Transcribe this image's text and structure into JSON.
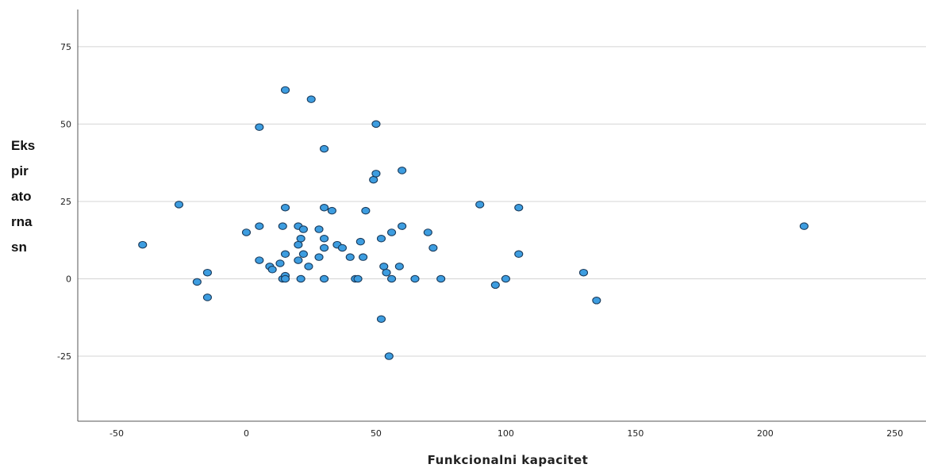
{
  "chart_data": {
    "type": "scatter",
    "title": "",
    "xlabel": "Funkcionalni kapacitet",
    "ylabel_lines": [
      "Eks",
      "pir",
      "ato",
      "rna",
      "sn"
    ],
    "xlim": [
      -65,
      262
    ],
    "ylim": [
      -46,
      87
    ],
    "xticks": [
      -50,
      0,
      50,
      100,
      150,
      200,
      250
    ],
    "yticks": [
      -25,
      0,
      25,
      50,
      75
    ],
    "grid": "horizontal",
    "legend": "none",
    "colors": {
      "point_fill": "#3d9de0",
      "point_stroke": "#1a3a5a",
      "grid": "#d4d4d4",
      "axis": "#555555"
    },
    "points": [
      [
        -40,
        11
      ],
      [
        -26,
        24
      ],
      [
        -19,
        -1
      ],
      [
        -15,
        2
      ],
      [
        -15,
        -6
      ],
      [
        0,
        15
      ],
      [
        5,
        49
      ],
      [
        5,
        17
      ],
      [
        5,
        6
      ],
      [
        9,
        4
      ],
      [
        10,
        3
      ],
      [
        13,
        5
      ],
      [
        14,
        17
      ],
      [
        14,
        0
      ],
      [
        15,
        61
      ],
      [
        15,
        23
      ],
      [
        15,
        8
      ],
      [
        15,
        1
      ],
      [
        15,
        0
      ],
      [
        20,
        17
      ],
      [
        20,
        11
      ],
      [
        20,
        6
      ],
      [
        21,
        13
      ],
      [
        21,
        0
      ],
      [
        22,
        16
      ],
      [
        22,
        8
      ],
      [
        24,
        4
      ],
      [
        25,
        58
      ],
      [
        28,
        16
      ],
      [
        28,
        7
      ],
      [
        30,
        42
      ],
      [
        30,
        23
      ],
      [
        30,
        13
      ],
      [
        30,
        10
      ],
      [
        30,
        0
      ],
      [
        33,
        22
      ],
      [
        35,
        11
      ],
      [
        37,
        10
      ],
      [
        40,
        7
      ],
      [
        42,
        0
      ],
      [
        43,
        0
      ],
      [
        44,
        12
      ],
      [
        45,
        7
      ],
      [
        46,
        22
      ],
      [
        49,
        32
      ],
      [
        50,
        50
      ],
      [
        50,
        34
      ],
      [
        52,
        13
      ],
      [
        52,
        -13
      ],
      [
        53,
        4
      ],
      [
        54,
        2
      ],
      [
        55,
        -25
      ],
      [
        56,
        15
      ],
      [
        56,
        0
      ],
      [
        59,
        4
      ],
      [
        60,
        35
      ],
      [
        60,
        17
      ],
      [
        65,
        0
      ],
      [
        70,
        15
      ],
      [
        72,
        10
      ],
      [
        75,
        0
      ],
      [
        90,
        24
      ],
      [
        96,
        -2
      ],
      [
        100,
        0
      ],
      [
        105,
        23
      ],
      [
        105,
        8
      ],
      [
        130,
        2
      ],
      [
        135,
        -7
      ],
      [
        215,
        17
      ]
    ]
  }
}
